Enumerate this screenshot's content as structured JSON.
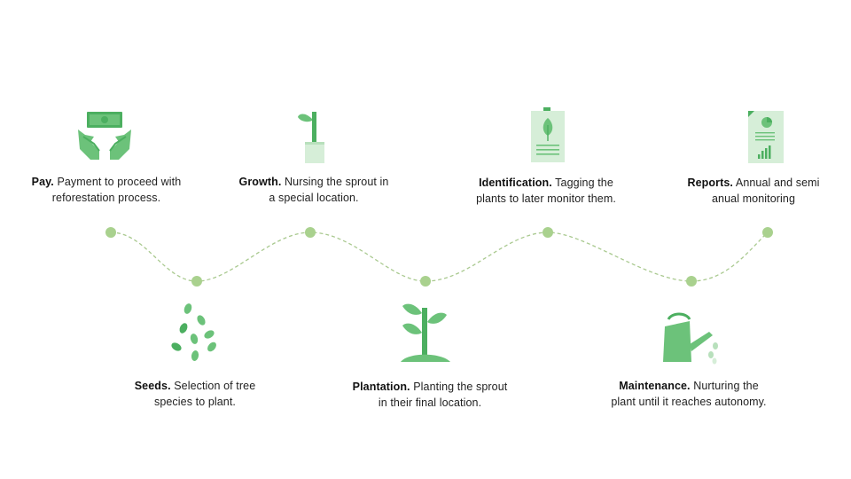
{
  "colors": {
    "dark_green": "#4caf60",
    "mid_green": "#6cc27a",
    "light_green": "#b8e0bc",
    "pale_green": "#d6eed8",
    "dot_green": "#a9d18e",
    "line_green": "#a9c98f"
  },
  "steps": [
    {
      "id": "pay",
      "icon": "money-hands-icon",
      "title": "Pay.",
      "line1": "Payment to proceed with",
      "line2": "reforestation  process."
    },
    {
      "id": "growth",
      "icon": "potted-sprout-icon",
      "title": "Growth.",
      "line1": "Nursing  the sprout in",
      "line2": "a special location."
    },
    {
      "id": "identification",
      "icon": "tag-clipboard-icon",
      "title": "Identification.",
      "line1": " Tagging the",
      "line2": "plants to later monitor them."
    },
    {
      "id": "reports",
      "icon": "report-document-icon",
      "title": "Reports.",
      "line1": "Annual and semi",
      "line2": "anual monitoring"
    },
    {
      "id": "seeds",
      "icon": "seeds-icon",
      "title": "Seeds.",
      "line1": "Selection of tree",
      "line2": "species to plant."
    },
    {
      "id": "plantation",
      "icon": "planted-sapling-icon",
      "title": "Plantation.",
      "line1": " Planting the sprout",
      "line2": "in their final location."
    },
    {
      "id": "maintenance",
      "icon": "watering-can-icon",
      "title": "Maintenance.",
      "line1": " Nurturing  the",
      "line2": "plant until it reaches autonomy."
    }
  ]
}
